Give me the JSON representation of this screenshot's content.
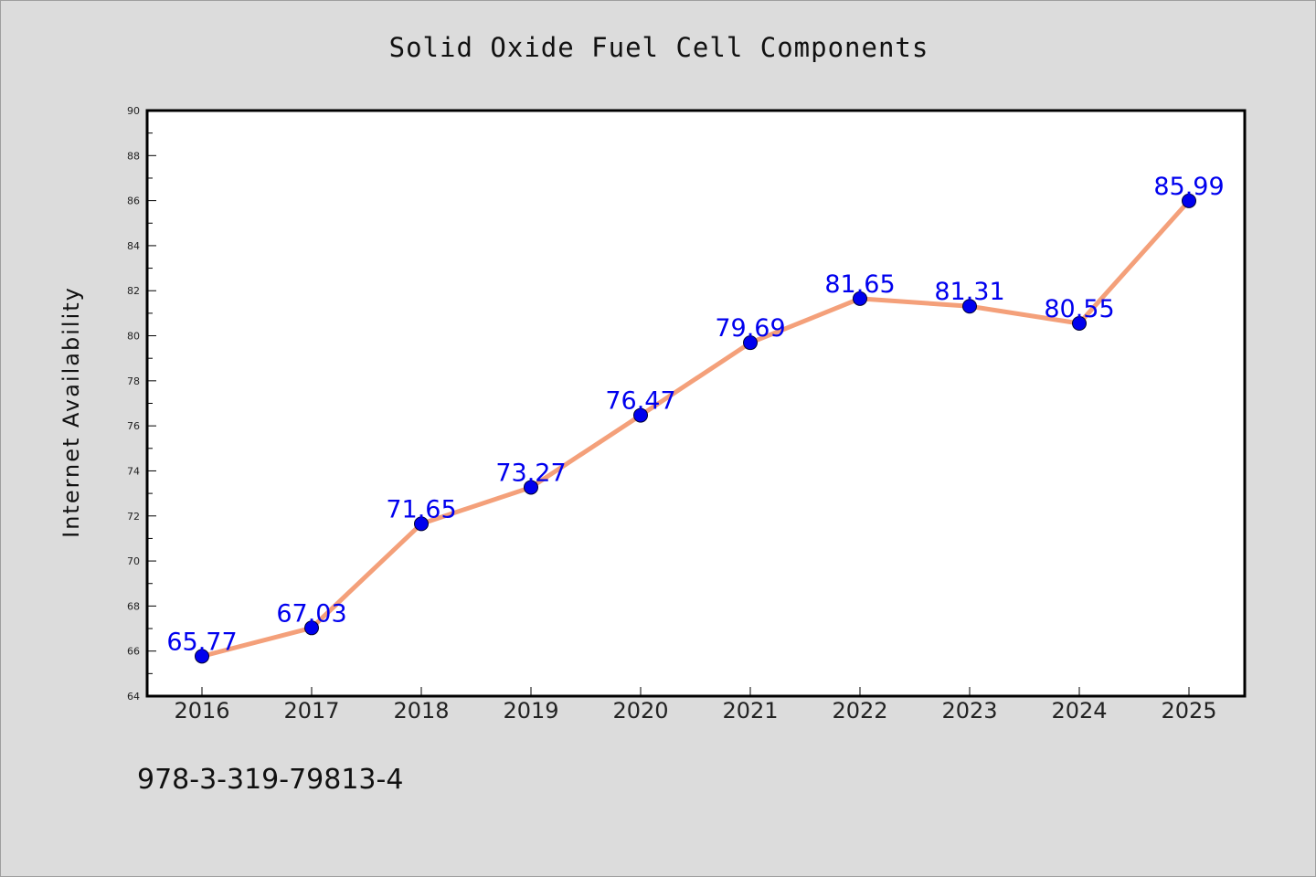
{
  "chart_data": {
    "type": "line",
    "title": "Solid Oxide Fuel Cell Components",
    "xlabel": "",
    "ylabel": "Internet Availability",
    "categories": [
      "2016",
      "2017",
      "2018",
      "2019",
      "2020",
      "2021",
      "2022",
      "2023",
      "2024",
      "2025"
    ],
    "values": [
      65.77,
      67.03,
      71.65,
      73.27,
      76.47,
      79.69,
      81.65,
      81.31,
      80.55,
      85.99
    ],
    "data_labels": [
      "65.77",
      "67.03",
      "71.65",
      "73.27",
      "76.47",
      "79.69",
      "81.65",
      "81.31",
      "80.55",
      "85.99"
    ],
    "ylim": [
      64,
      90
    ],
    "y_ticks": [
      64,
      66,
      68,
      70,
      72,
      74,
      76,
      78,
      80,
      82,
      84,
      86,
      88,
      90
    ],
    "grid": false,
    "legend": "none",
    "colors": {
      "line": "#f4a07a",
      "marker": "#0000ee",
      "label": "#0000ee"
    }
  },
  "footnote": "978-3-319-79813-4"
}
